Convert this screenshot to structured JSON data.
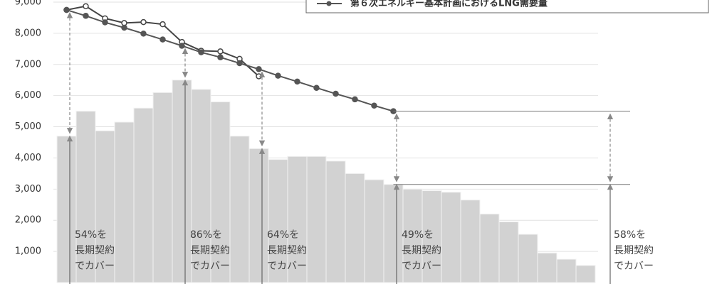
{
  "chart_data": {
    "type": "bar",
    "legend": "第６次エネルギー基本計画におけるLNG需要量",
    "values": [
      4700,
      5500,
      4870,
      5150,
      5600,
      6100,
      6500,
      6200,
      5800,
      4700,
      4300,
      3950,
      4050,
      4050,
      3900,
      3500,
      3300,
      3150,
      3000,
      2950,
      2900,
      2650,
      2200,
      1950,
      1550,
      950,
      750,
      550
    ],
    "color": "#d2d2d2",
    "series": [
      {
        "values": [
          8750,
          8870,
          8480,
          8330,
          8360,
          8290,
          7720,
          7440,
          7420,
          7180,
          6620
        ],
        "color": "#444444",
        "marker": "hollow"
      },
      {
        "name": "第６次エネルギー基本計画におけるLNG需要量",
        "values": [
          8750,
          8560,
          8350,
          8180,
          7990,
          7800,
          7600,
          7390,
          7230,
          7040,
          6850,
          6640,
          6450,
          6250,
          6060,
          5880,
          5680,
          5500
        ],
        "color": "#555555",
        "marker": "filled"
      }
    ],
    "ylim": [
      0,
      9000
    ],
    "yticks": [
      {
        "value": 1000,
        "label": "1,000"
      },
      {
        "value": 2000,
        "label": "2,000"
      },
      {
        "value": 3000,
        "label": "3,000"
      },
      {
        "value": 4000,
        "label": "4,000"
      },
      {
        "value": 5000,
        "label": "5,000"
      },
      {
        "value": 6000,
        "label": "6,000"
      },
      {
        "value": 7000,
        "label": "7,000"
      },
      {
        "value": 8000,
        "label": "8,000"
      },
      {
        "value": 9000,
        "label": "9,000"
      }
    ],
    "grid": true,
    "annotations": [
      {
        "lines": [
          "54%を",
          "長期契約",
          "でカバー"
        ]
      },
      {
        "lines": [
          "86%を",
          "長期契約",
          "でカバー"
        ]
      },
      {
        "lines": [
          "64%を",
          "長期契約",
          "でカバー"
        ]
      },
      {
        "lines": [
          "49%を",
          "長期契約",
          "でカバー"
        ]
      },
      {
        "lines": [
          "58%を",
          "長期契約",
          "でカバー"
        ]
      }
    ]
  }
}
